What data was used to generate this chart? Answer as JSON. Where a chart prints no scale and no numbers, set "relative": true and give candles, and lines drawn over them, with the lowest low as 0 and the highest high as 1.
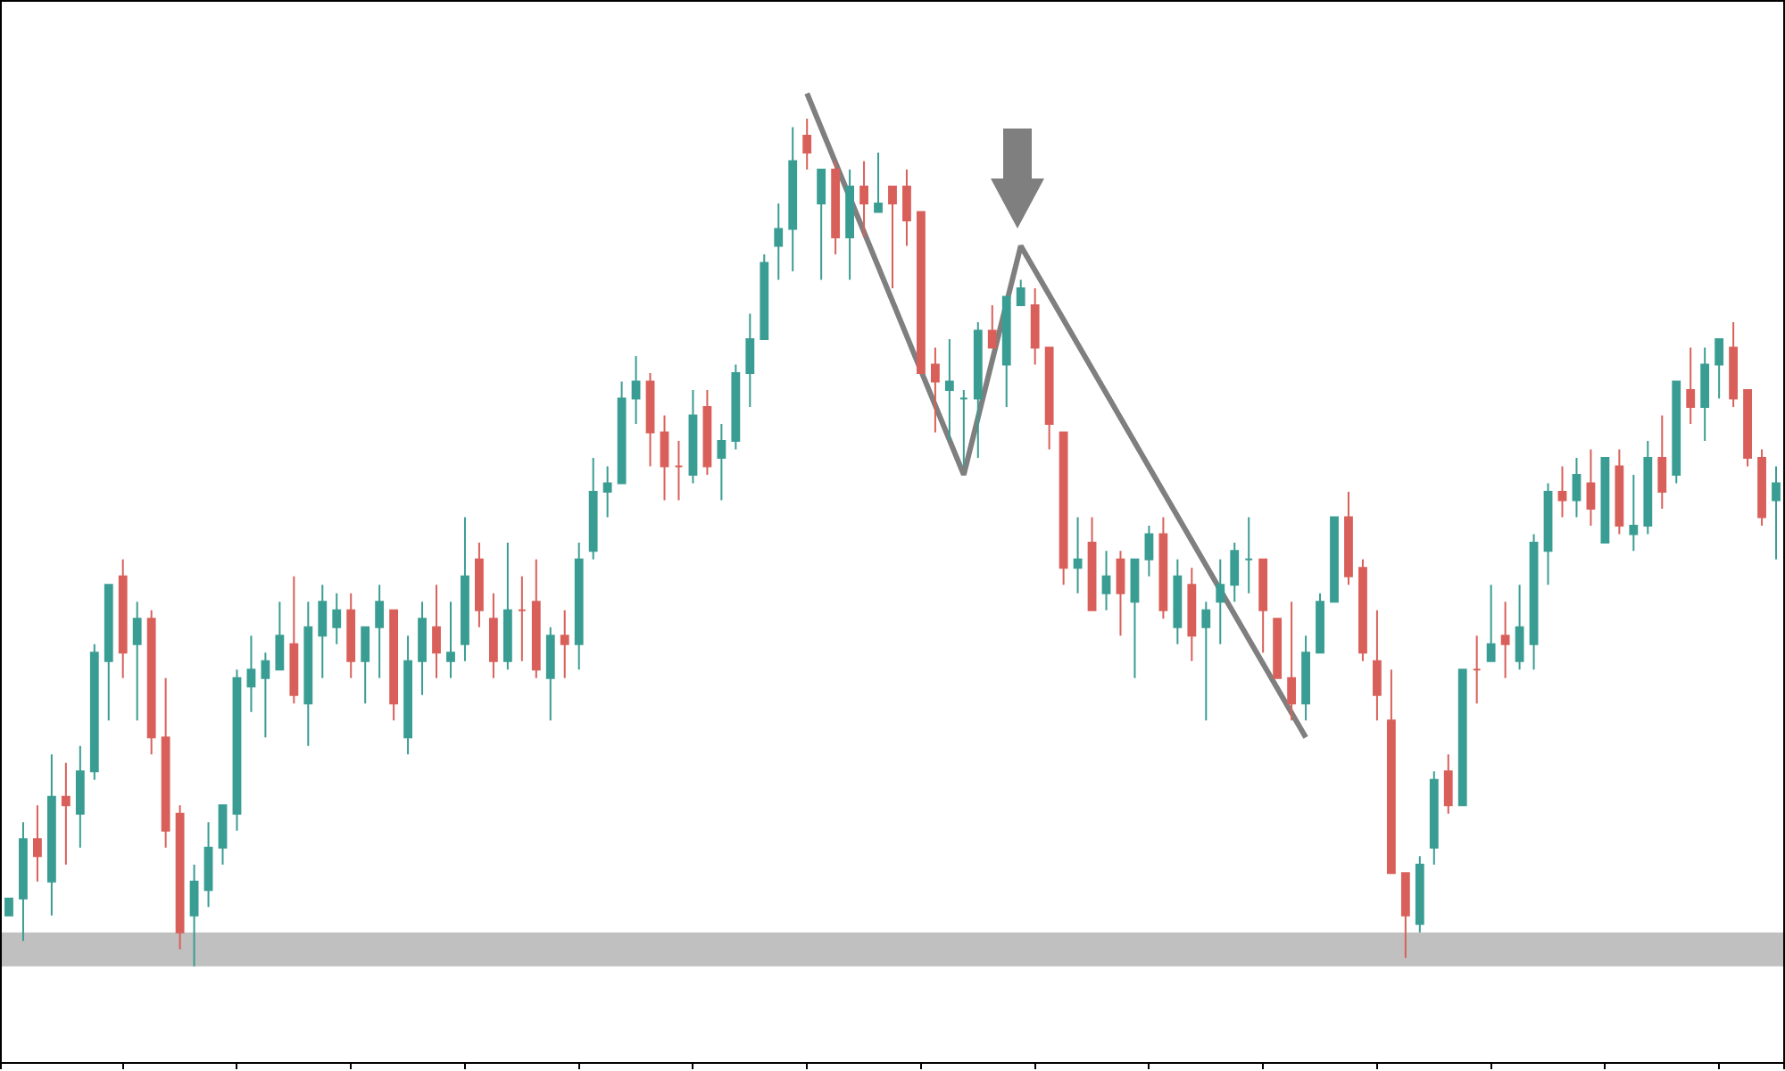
{
  "chart_data": {
    "type": "candlestick",
    "relative": true,
    "grid": false,
    "colors": [
      "#3a9d93",
      "#3a9d93",
      "#d9605a",
      "#3a9d93",
      "#d9605a",
      "#3a9d93",
      "#3a9d93",
      "#3a9d93",
      "#d9605a",
      "#3a9d93",
      "#d9605a",
      "#d9605a",
      "#d9605a",
      "#3a9d93",
      "#3a9d93",
      "#3a9d93",
      "#3a9d93",
      "#3a9d93",
      "#3a9d93",
      "#3a9d93",
      "#d9605a",
      "#3a9d93",
      "#3a9d93",
      "#3a9d93",
      "#d9605a",
      "#3a9d93",
      "#3a9d93",
      "#d9605a",
      "#3a9d93",
      "#3a9d93",
      "#d9605a",
      "#3a9d93",
      "#3a9d93",
      "#d9605a",
      "#d9605a",
      "#3a9d93",
      "#d9605a",
      "#d9605a",
      "#3a9d93",
      "#d9605a",
      "#3a9d93",
      "#3a9d93",
      "#3a9d93",
      "#3a9d93",
      "#3a9d93",
      "#d9605a",
      "#d9605a",
      "#d9605a",
      "#3a9d93",
      "#d9605a",
      "#3a9d93",
      "#3a9d93",
      "#3a9d93",
      "#3a9d93",
      "#3a9d93",
      "#3a9d93",
      "#d9605a",
      "#3a9d93",
      "#d9605a",
      "#3a9d93",
      "#d9605a",
      "#3a9d93",
      "#d9605a",
      "#d9605a",
      "#d9605a",
      "#d9605a",
      "#3a9d93",
      "#3a9d93",
      "#3a9d93",
      "#d9605a",
      "#3a9d93",
      "#3a9d93",
      "#d9605a",
      "#d9605a",
      "#d9605a",
      "#3a9d93",
      "#d9605a",
      "#3a9d93",
      "#d9605a",
      "#3a9d93",
      "#3a9d93",
      "#d9605a",
      "#3a9d93",
      "#d9605a",
      "#3a9d93",
      "#3a9d93",
      "#3a9d93",
      "#3a9d93",
      "#d9605a",
      "#d9605a",
      "#d9605a",
      "#3a9d93",
      "#3a9d93",
      "#3a9d93",
      "#d9605a",
      "#d9605a",
      "#d9605a",
      "#d9605a",
      "#d9605a",
      "#3a9d93",
      "#3a9d93",
      "#d9605a",
      "#3a9d93",
      "#d9605a",
      "#3a9d93",
      "#d9605a",
      "#3a9d93",
      "#3a9d93",
      "#3a9d93",
      "#d9605a",
      "#3a9d93",
      "#d9605a",
      "#3a9d93",
      "#d9605a",
      "#3a9d93",
      "#3a9d93",
      "#d9605a",
      "#3a9d93",
      "#d9605a",
      "#3a9d93",
      "#3a9d93",
      "#d9605a",
      "#d9605a",
      "#d9605a",
      "#3a9d93"
    ],
    "categories": [
      null,
      null,
      null,
      null,
      null,
      null,
      null,
      null,
      null,
      null,
      null,
      null,
      null,
      null,
      null,
      null,
      null,
      null,
      null,
      null,
      null,
      null,
      null,
      null,
      null,
      null,
      null,
      null,
      null,
      null,
      null,
      null,
      null,
      null,
      null,
      null,
      null,
      null,
      null,
      null,
      null,
      null,
      null,
      null,
      null,
      null,
      null,
      null,
      null,
      null,
      null,
      null,
      null,
      null,
      null,
      null,
      null,
      null,
      null,
      null,
      null,
      null,
      null,
      null,
      null,
      null,
      null,
      null,
      null,
      null,
      null,
      null,
      null,
      null,
      null,
      null,
      null,
      null,
      null,
      null,
      null,
      null,
      null,
      null,
      null,
      null,
      null,
      null,
      null,
      null,
      null,
      null,
      null,
      null,
      null,
      null,
      null,
      null,
      null,
      null,
      null,
      null,
      null,
      null,
      null,
      null,
      null,
      null,
      null,
      null,
      null,
      null,
      null,
      null,
      null,
      null,
      null,
      null,
      null,
      null,
      null,
      null,
      null,
      null,
      null
    ],
    "ohlc": [
      [
        0.06,
        0.08,
        0.06,
        0.08
      ],
      [
        0.08,
        0.17,
        0.03,
        0.15
      ],
      [
        0.15,
        0.19,
        0.1,
        0.13
      ],
      [
        0.1,
        0.25,
        0.06,
        0.2
      ],
      [
        0.2,
        0.24,
        0.12,
        0.19
      ],
      [
        0.18,
        0.26,
        0.14,
        0.23
      ],
      [
        0.23,
        0.38,
        0.22,
        0.37
      ],
      [
        0.36,
        0.45,
        0.29,
        0.45
      ],
      [
        0.46,
        0.48,
        0.34,
        0.37
      ],
      [
        0.38,
        0.43,
        0.29,
        0.41
      ],
      [
        0.41,
        0.42,
        0.25,
        0.27
      ],
      [
        0.27,
        0.34,
        0.14,
        0.16
      ],
      [
        0.18,
        0.19,
        0.02,
        0.04
      ],
      [
        0.06,
        0.12,
        0,
        0.1
      ],
      [
        0.09,
        0.17,
        0.07,
        0.14
      ],
      [
        0.14,
        0.19,
        0.12,
        0.19
      ],
      [
        0.18,
        0.35,
        0.16,
        0.34
      ],
      [
        0.33,
        0.39,
        0.3,
        0.35
      ],
      [
        0.34,
        0.37,
        0.27,
        0.36
      ],
      [
        0.35,
        0.43,
        0.35,
        0.39
      ],
      [
        0.38,
        0.46,
        0.31,
        0.32
      ],
      [
        0.31,
        0.43,
        0.26,
        0.4
      ],
      [
        0.39,
        0.45,
        0.34,
        0.43
      ],
      [
        0.4,
        0.44,
        0.38,
        0.42
      ],
      [
        0.42,
        0.44,
        0.34,
        0.36
      ],
      [
        0.36,
        0.4,
        0.31,
        0.4
      ],
      [
        0.4,
        0.45,
        0.34,
        0.43
      ],
      [
        0.42,
        0.42,
        0.29,
        0.31
      ],
      [
        0.27,
        0.39,
        0.25,
        0.36
      ],
      [
        0.36,
        0.43,
        0.32,
        0.41
      ],
      [
        0.4,
        0.45,
        0.34,
        0.37
      ],
      [
        0.36,
        0.43,
        0.34,
        0.37
      ],
      [
        0.38,
        0.53,
        0.36,
        0.46
      ],
      [
        0.48,
        0.5,
        0.4,
        0.42
      ],
      [
        0.41,
        0.44,
        0.34,
        0.36
      ],
      [
        0.36,
        0.5,
        0.35,
        0.42
      ],
      [
        0.42,
        0.46,
        0.36,
        0.42
      ],
      [
        0.43,
        0.48,
        0.34,
        0.35
      ],
      [
        0.34,
        0.4,
        0.29,
        0.39
      ],
      [
        0.39,
        0.42,
        0.34,
        0.38
      ],
      [
        0.38,
        0.5,
        0.35,
        0.48
      ],
      [
        0.49,
        0.6,
        0.48,
        0.56
      ],
      [
        0.56,
        0.59,
        0.53,
        0.57
      ],
      [
        0.57,
        0.69,
        0.57,
        0.67
      ],
      [
        0.67,
        0.72,
        0.64,
        0.69
      ],
      [
        0.69,
        0.7,
        0.59,
        0.63
      ],
      [
        0.63,
        0.65,
        0.55,
        0.59
      ],
      [
        0.59,
        0.62,
        0.55,
        0.59
      ],
      [
        0.58,
        0.68,
        0.57,
        0.65
      ],
      [
        0.66,
        0.68,
        0.58,
        0.59
      ],
      [
        0.6,
        0.64,
        0.55,
        0.62
      ],
      [
        0.62,
        0.71,
        0.61,
        0.7
      ],
      [
        0.7,
        0.77,
        0.66,
        0.74
      ],
      [
        0.74,
        0.84,
        0.74,
        0.83
      ],
      [
        0.85,
        0.9,
        0.81,
        0.87
      ],
      [
        0.87,
        0.99,
        0.82,
        0.95
      ],
      [
        0.98,
        1,
        0.94,
        0.96
      ],
      [
        0.9,
        0.94,
        0.81,
        0.94
      ],
      [
        0.94,
        0.95,
        0.84,
        0.86
      ],
      [
        0.86,
        0.94,
        0.81,
        0.92
      ],
      [
        0.92,
        0.95,
        0.86,
        0.9
      ],
      [
        0.89,
        0.96,
        0.89,
        0.9
      ],
      [
        0.92,
        0.92,
        0.8,
        0.9
      ],
      [
        0.92,
        0.94,
        0.85,
        0.88
      ],
      [
        0.89,
        0.89,
        0.7,
        0.7
      ],
      [
        0.71,
        0.73,
        0.63,
        0.69
      ],
      [
        0.68,
        0.74,
        0.62,
        0.69
      ],
      [
        0.67,
        0.68,
        0.59,
        0.67
      ],
      [
        0.67,
        0.76,
        0.6,
        0.75
      ],
      [
        0.75,
        0.78,
        0.73,
        0.73
      ],
      [
        0.71,
        0.79,
        0.66,
        0.79
      ],
      [
        0.78,
        0.81,
        0.78,
        0.8
      ],
      [
        0.78,
        0.8,
        0.71,
        0.73
      ],
      [
        0.73,
        0.73,
        0.61,
        0.64
      ],
      [
        0.63,
        0.63,
        0.45,
        0.47
      ],
      [
        0.47,
        0.53,
        0.44,
        0.48
      ],
      [
        0.5,
        0.53,
        0.42,
        0.42
      ],
      [
        0.44,
        0.49,
        0.42,
        0.46
      ],
      [
        0.48,
        0.49,
        0.39,
        0.44
      ],
      [
        0.43,
        0.48,
        0.34,
        0.48
      ],
      [
        0.48,
        0.52,
        0.46,
        0.51
      ],
      [
        0.51,
        0.53,
        0.41,
        0.42
      ],
      [
        0.4,
        0.48,
        0.38,
        0.46
      ],
      [
        0.45,
        0.47,
        0.36,
        0.39
      ],
      [
        0.4,
        0.43,
        0.29,
        0.42
      ],
      [
        0.43,
        0.48,
        0.38,
        0.45
      ],
      [
        0.45,
        0.5,
        0.43,
        0.49
      ],
      [
        0.48,
        0.53,
        0.44,
        0.48
      ],
      [
        0.48,
        0.48,
        0.37,
        0.42
      ],
      [
        0.41,
        0.41,
        0.34,
        0.34
      ],
      [
        0.34,
        0.43,
        0.29,
        0.31
      ],
      [
        0.31,
        0.39,
        0.29,
        0.37
      ],
      [
        0.37,
        0.44,
        0.37,
        0.43
      ],
      [
        0.43,
        0.53,
        0.43,
        0.53
      ],
      [
        0.53,
        0.56,
        0.45,
        0.46
      ],
      [
        0.47,
        0.48,
        0.36,
        0.37
      ],
      [
        0.36,
        0.42,
        0.29,
        0.32
      ],
      [
        0.29,
        0.35,
        0.11,
        0.11
      ],
      [
        0.11,
        0.11,
        0.01,
        0.06
      ],
      [
        0.05,
        0.13,
        0.04,
        0.12
      ],
      [
        0.14,
        0.23,
        0.12,
        0.22
      ],
      [
        0.23,
        0.25,
        0.18,
        0.19
      ],
      [
        0.19,
        0.35,
        0.19,
        0.35
      ],
      [
        0.35,
        0.39,
        0.31,
        0.35
      ],
      [
        0.36,
        0.45,
        0.36,
        0.38
      ],
      [
        0.39,
        0.43,
        0.34,
        0.38
      ],
      [
        0.36,
        0.45,
        0.35,
        0.4
      ],
      [
        0.38,
        0.51,
        0.35,
        0.5
      ],
      [
        0.49,
        0.57,
        0.45,
        0.56
      ],
      [
        0.56,
        0.59,
        0.53,
        0.55
      ],
      [
        0.55,
        0.6,
        0.53,
        0.58
      ],
      [
        0.57,
        0.61,
        0.52,
        0.54
      ],
      [
        0.5,
        0.6,
        0.5,
        0.6
      ],
      [
        0.59,
        0.61,
        0.51,
        0.52
      ],
      [
        0.51,
        0.58,
        0.49,
        0.52
      ],
      [
        0.52,
        0.62,
        0.51,
        0.6
      ],
      [
        0.6,
        0.65,
        0.54,
        0.56
      ],
      [
        0.58,
        0.69,
        0.57,
        0.69
      ],
      [
        0.68,
        0.73,
        0.64,
        0.66
      ],
      [
        0.66,
        0.73,
        0.62,
        0.71
      ],
      [
        0.71,
        0.74,
        0.67,
        0.74
      ],
      [
        0.73,
        0.76,
        0.66,
        0.67
      ],
      [
        0.68,
        0.68,
        0.59,
        0.6
      ],
      [
        0.6,
        0.61,
        0.52,
        0.53
      ],
      [
        0.55,
        0.59,
        0.48,
        0.57
      ]
    ],
    "series": [
      {
        "type": "line",
        "color": "#7f7f7f",
        "line_style": "solid",
        "values": [
          null,
          null,
          null,
          null,
          null,
          null,
          null,
          null,
          null,
          null,
          null,
          null,
          null,
          null,
          null,
          null,
          null,
          null,
          null,
          null,
          null,
          null,
          null,
          null,
          null,
          null,
          null,
          null,
          null,
          null,
          null,
          null,
          null,
          null,
          null,
          null,
          null,
          null,
          null,
          null,
          null,
          null,
          null,
          null,
          null,
          null,
          null,
          null,
          null,
          null,
          null,
          null,
          null,
          null,
          null,
          null,
          1.03,
          null,
          null,
          null,
          null,
          null,
          null,
          null,
          null,
          null,
          null,
          0.58,
          null,
          null,
          null,
          0.85,
          null,
          null,
          null,
          null,
          null,
          null,
          null,
          null,
          null,
          null,
          null,
          null,
          null,
          null,
          null,
          null,
          null,
          null,
          null,
          0.27,
          null,
          null,
          null,
          null,
          null,
          null,
          null,
          null,
          null,
          null,
          null,
          null,
          null,
          null,
          null,
          null,
          null,
          null,
          null,
          null,
          null,
          null,
          null,
          null,
          null,
          null,
          null,
          null,
          null,
          null,
          null,
          null,
          null
        ]
      }
    ],
    "bands": [
      {
        "axis": "y",
        "from": 0,
        "to": 0.04,
        "color": "#c0c0c0"
      }
    ]
  }
}
